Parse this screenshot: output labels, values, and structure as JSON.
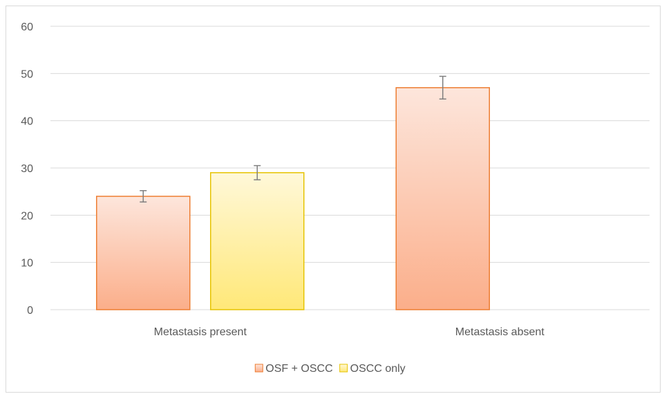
{
  "chart_data": {
    "type": "bar",
    "categories": [
      "Metastasis present",
      "Metastasis absent"
    ],
    "series": [
      {
        "name": "OSF + OSCC",
        "values": [
          24,
          47
        ],
        "errors": [
          1.2,
          2.4
        ],
        "color_top": "#fde6dc",
        "color_bottom": "#fbae8a",
        "border": "#ed7d31"
      },
      {
        "name": "OSCC only",
        "values": [
          29,
          null
        ],
        "errors": [
          1.5,
          null
        ],
        "color_top": "#fff8d9",
        "color_bottom": "#ffe878",
        "border": "#e6c300"
      }
    ],
    "yticks": [
      0,
      10,
      20,
      30,
      40,
      50,
      60
    ],
    "ylim": [
      0,
      60
    ],
    "grid": true,
    "legend": "bottom",
    "gridline_color": "#d9d9d9",
    "error_bar_color": "#7f7f7f"
  }
}
